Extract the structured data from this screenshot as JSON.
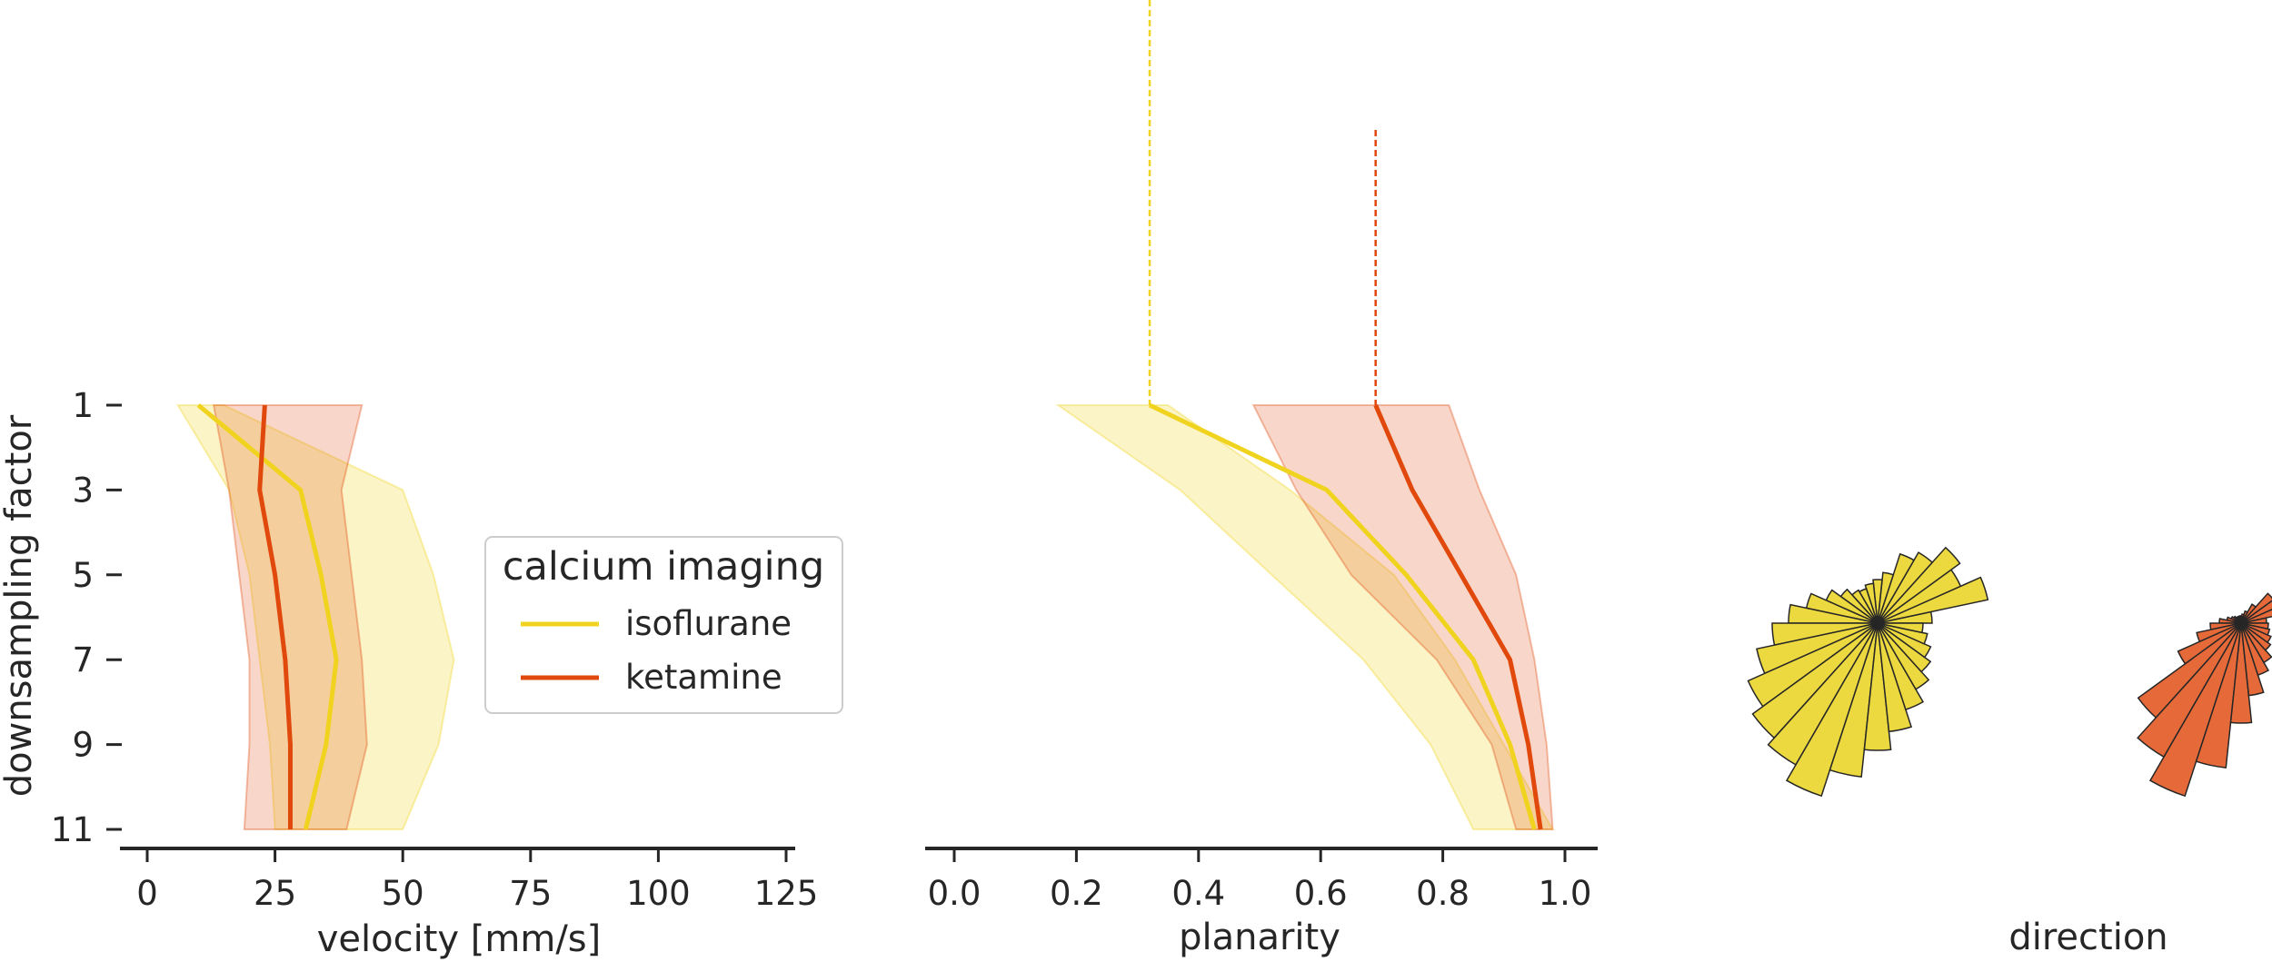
{
  "colors": {
    "isoflurane": "#f0d31e",
    "ketamine": "#e0480c",
    "isoflurane_rose": "#ecd83f",
    "ketamine_rose": "#e66a39",
    "axis": "#262626"
  },
  "legend": {
    "title": "calcium imaging",
    "items": [
      {
        "label": "isoflurane",
        "color": "#f0d31e"
      },
      {
        "label": "ketamine",
        "color": "#e0480c"
      }
    ],
    "placement": "center-right of velocity panel"
  },
  "chart_data": [
    {
      "type": "line",
      "panel": "velocity",
      "xlabel": "velocity [mm/s]",
      "ylabel": "downsampling factor",
      "xlim": [
        -10,
        125
      ],
      "xticks": [
        0,
        25,
        50,
        75,
        100,
        125
      ],
      "xtick_labels": [
        "0",
        "25",
        "50",
        "75",
        "100",
        "125"
      ],
      "y": [
        1,
        3,
        5,
        7,
        9,
        11
      ],
      "ytick_labels": [
        "1",
        "3",
        "5",
        "7",
        "9",
        "11"
      ],
      "series": [
        {
          "name": "isoflurane",
          "color": "#f0d31e",
          "values": [
            10,
            30,
            34,
            37,
            35,
            31
          ],
          "band_low": [
            6,
            16,
            20,
            22,
            24,
            25
          ],
          "band_high": [
            15,
            50,
            56,
            60,
            57,
            50
          ]
        },
        {
          "name": "ketamine",
          "color": "#e0480c",
          "values": [
            23,
            22,
            25,
            27,
            28,
            28
          ],
          "band_low": [
            13,
            16,
            18,
            20,
            20,
            19
          ],
          "band_high": [
            42,
            38,
            40,
            42,
            43,
            39
          ]
        }
      ]
    },
    {
      "type": "line",
      "panel": "planarity",
      "xlabel": "planarity",
      "xlim": [
        -0.05,
        1.05
      ],
      "xticks": [
        0.0,
        0.2,
        0.4,
        0.6,
        0.8,
        1.0
      ],
      "xtick_labels": [
        "0.0",
        "0.2",
        "0.4",
        "0.6",
        "0.8",
        "1.0"
      ],
      "y": [
        1,
        3,
        5,
        7,
        9,
        11
      ],
      "series": [
        {
          "name": "isoflurane",
          "color": "#f0d31e",
          "values": [
            0.32,
            0.61,
            0.74,
            0.85,
            0.91,
            0.95
          ],
          "band_low": [
            0.17,
            0.37,
            0.52,
            0.67,
            0.78,
            0.85
          ],
          "band_high": [
            0.35,
            0.55,
            0.72,
            0.82,
            0.9,
            0.98
          ],
          "median_marker": 0.32
        },
        {
          "name": "ketamine",
          "color": "#e0480c",
          "values": [
            0.69,
            0.75,
            0.83,
            0.91,
            0.94,
            0.96
          ],
          "band_low": [
            0.49,
            0.56,
            0.65,
            0.79,
            0.88,
            0.92
          ],
          "band_high": [
            0.81,
            0.86,
            0.92,
            0.95,
            0.97,
            0.98
          ],
          "median_marker": 0.69
        }
      ]
    },
    {
      "type": "polar-bar",
      "panel": "direction",
      "xlabel": "direction",
      "series": [
        {
          "name": "isoflurane",
          "color": "#ecd83f",
          "bins": 30,
          "radii": [
            0.3,
            0.62,
            0.5,
            0.56,
            0.45,
            0.4,
            0.28,
            0.24,
            0.22,
            0.2,
            0.21,
            0.25,
            0.31,
            0.4,
            0.49,
            0.58,
            0.68,
            0.78,
            0.85,
            0.9,
            1.0,
            0.85,
            0.7,
            0.6,
            0.5,
            0.42,
            0.36,
            0.32,
            0.28,
            0.25
          ]
        },
        {
          "name": "ketamine",
          "color": "#e66a39",
          "bins": 30,
          "radii": [
            0.14,
            0.3,
            0.27,
            0.22,
            0.12,
            0.07,
            0.05,
            0.04,
            0.04,
            0.04,
            0.04,
            0.05,
            0.06,
            0.08,
            0.12,
            0.17,
            0.25,
            0.38,
            0.7,
            0.85,
            1.0,
            0.8,
            0.55,
            0.4,
            0.3,
            0.25,
            0.2,
            0.18,
            0.16,
            0.15
          ]
        }
      ]
    }
  ]
}
